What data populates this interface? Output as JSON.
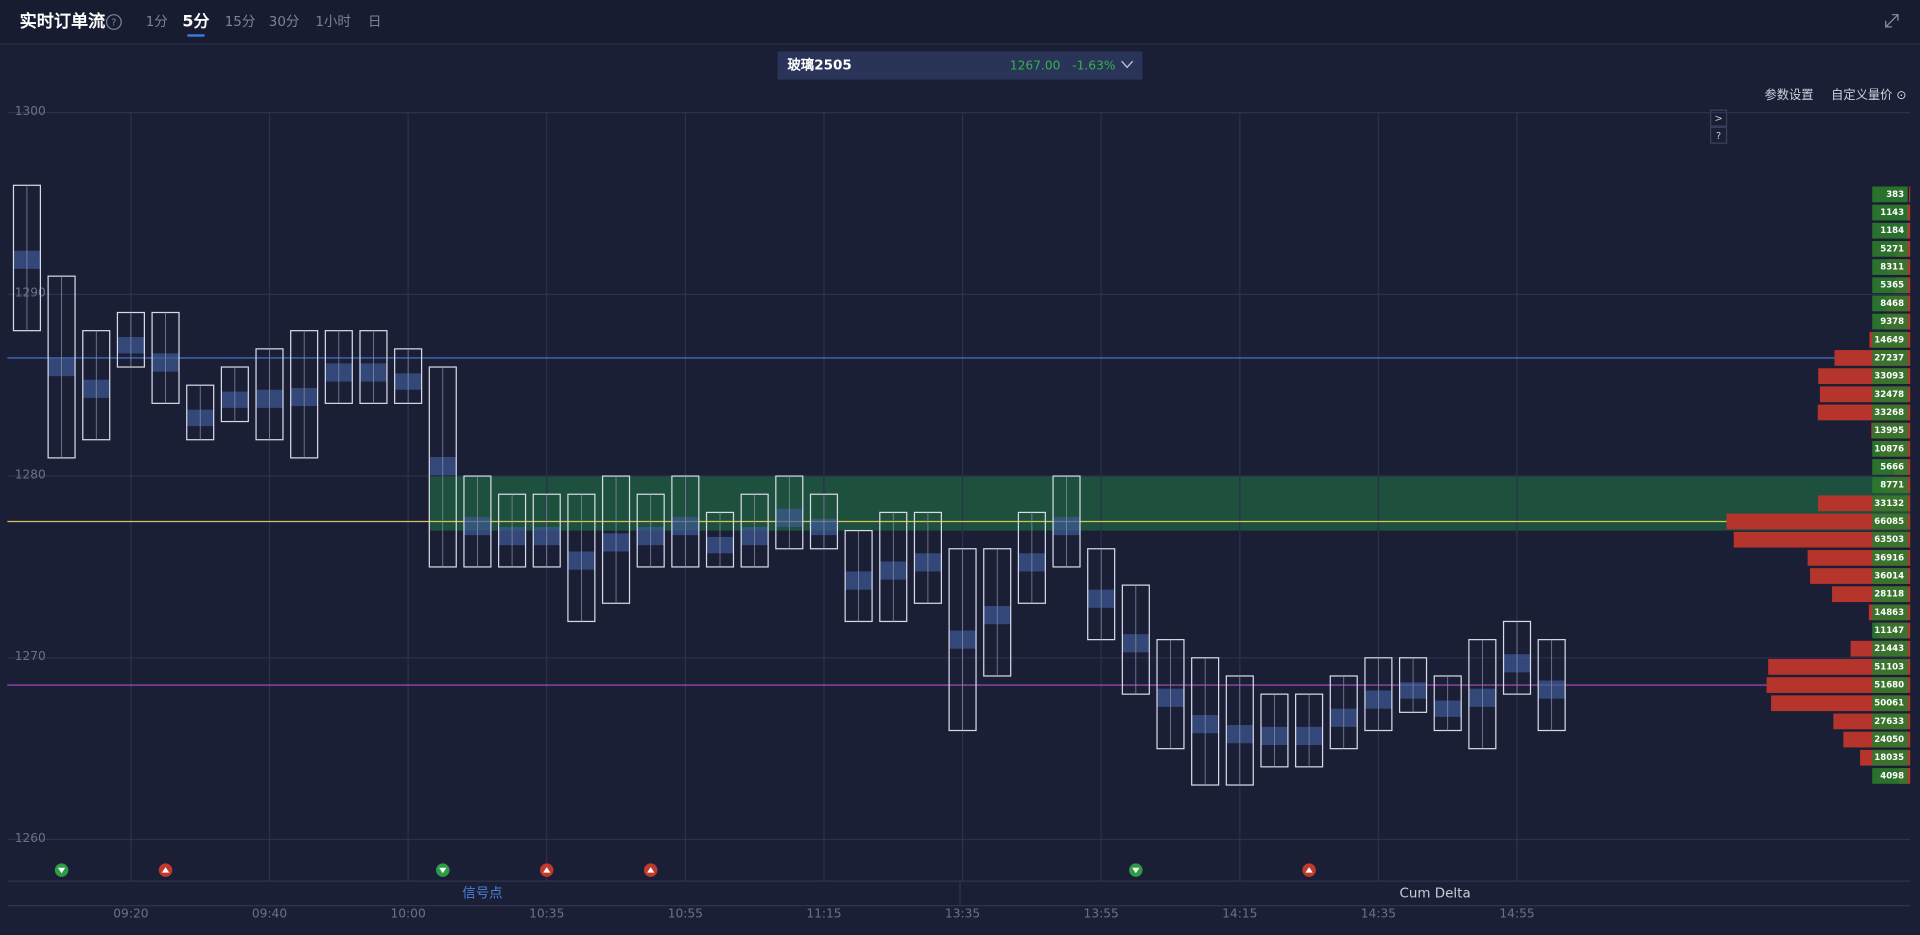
{
  "header": {
    "title": "实时订单流",
    "help": "?",
    "tabs": [
      "1分",
      "5分",
      "15分",
      "30分",
      "1小时",
      "日"
    ],
    "active_tab": 1
  },
  "instrument": {
    "name": "玻璃2505",
    "price": "1267.00",
    "change": "-1.63%"
  },
  "toolbar": {
    "settings": "参数设置",
    "custom": "自定义量价 ⊙",
    "next": ">",
    "help": "?"
  },
  "footer": {
    "tabs": [
      "信号点",
      "Cum Delta"
    ]
  },
  "chart_data": {
    "type": "footprint",
    "ylim": [
      1258,
      1300
    ],
    "yticks": [
      1260,
      1270,
      1280,
      1290,
      1300
    ],
    "categories": [
      null,
      null,
      null,
      "09:20",
      null,
      null,
      null,
      "09:40",
      null,
      null,
      null,
      "10:00",
      null,
      null,
      null,
      "10:35",
      null,
      null,
      null,
      "10:55",
      null,
      null,
      null,
      "11:15",
      null,
      null,
      null,
      "13:35",
      null,
      null,
      null,
      "13:55",
      null,
      null,
      null,
      "14:15",
      null,
      null,
      null,
      "14:35",
      null,
      null,
      null,
      "14:55",
      null
    ],
    "highs": [
      1295,
      1290,
      1287,
      1288,
      1288,
      1284,
      1285,
      1286,
      1287,
      1287,
      1287,
      1286,
      1285,
      1279,
      1278,
      1278,
      1278,
      1279,
      1278,
      1279,
      1277,
      1278,
      1279,
      1278,
      1276,
      1277,
      1277,
      1275,
      1275,
      1277,
      1279,
      1275,
      1273,
      1270,
      1269,
      1268,
      1267,
      1267,
      1268,
      1269,
      1269,
      1268,
      1270,
      1271,
      1270
    ],
    "lows": [
      1288,
      1281,
      1282,
      1286,
      1284,
      1282,
      1283,
      1282,
      1281,
      1284,
      1284,
      1284,
      1275,
      1275,
      1275,
      1275,
      1272,
      1273,
      1275,
      1275,
      1275,
      1275,
      1276,
      1276,
      1272,
      1272,
      1273,
      1266,
      1269,
      1273,
      1275,
      1271,
      1268,
      1265,
      1263,
      1263,
      1264,
      1264,
      1265,
      1266,
      1267,
      1266,
      1265,
      1268,
      1266
    ],
    "candle_color": "#d8dae6",
    "levels": [
      {
        "price": 1286,
        "color": "#4a78d8"
      },
      {
        "price": 1277,
        "color": "#d8c25a"
      },
      {
        "price": 1268,
        "color": "#b34ec0"
      }
    ],
    "zone": {
      "from": 1277,
      "to": 1279,
      "color": "#1d5a3e"
    },
    "signals": [
      {
        "index": 1,
        "color": "#2e9b46",
        "direction": "down"
      },
      {
        "index": 4,
        "color": "#c0392b",
        "direction": "up"
      },
      {
        "index": 12,
        "color": "#2e9b46",
        "direction": "down"
      },
      {
        "index": 15,
        "color": "#c0392b",
        "direction": "up"
      },
      {
        "index": 18,
        "color": "#c0392b",
        "direction": "up"
      },
      {
        "index": 32,
        "color": "#2e9b46",
        "direction": "down"
      },
      {
        "index": 37,
        "color": "#c0392b",
        "direction": "up"
      }
    ],
    "profile": {
      "prices": [
        1295,
        1294,
        1293,
        1292,
        1291,
        1290,
        1289,
        1288,
        1287,
        1286,
        1285,
        1284,
        1283,
        1282,
        1281,
        1280,
        1279,
        1278,
        1277,
        1276,
        1275,
        1274,
        1273,
        1272,
        1271,
        1270,
        1269,
        1268,
        1267,
        1266,
        1265,
        1264,
        1263
      ],
      "values": [
        383,
        1143,
        1184,
        5271,
        8311,
        5365,
        8468,
        9378,
        14649,
        27237,
        33093,
        32478,
        33268,
        13995,
        10876,
        5666,
        8771,
        33132,
        66085,
        63503,
        36916,
        36014,
        28118,
        14863,
        11147,
        21443,
        51103,
        51680,
        50061,
        27633,
        24050,
        18035,
        4098
      ],
      "bar_color": "#b5352d",
      "label_color": "#2c7a2e"
    }
  }
}
